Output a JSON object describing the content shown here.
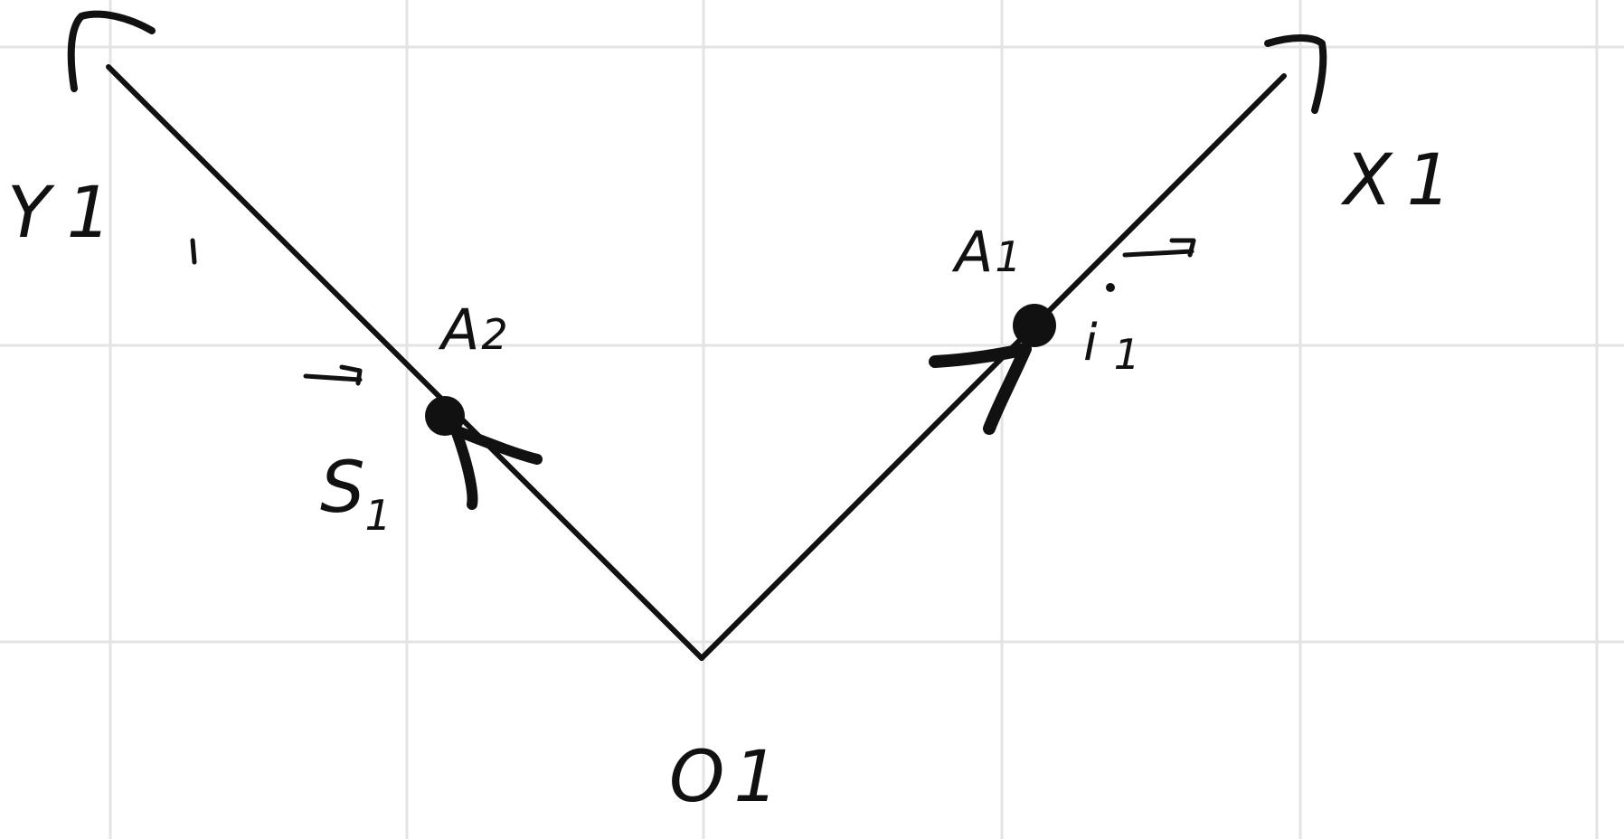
{
  "diagram": {
    "labels": {
      "origin": "O",
      "origin_sub": "1",
      "y_axis": "Y",
      "y_axis_sub": "1",
      "x_axis": "X",
      "x_axis_sub": "1",
      "point_a1": "A",
      "point_a1_sub": "1",
      "point_a2": "A",
      "point_a2_sub": "2",
      "vector_s": "S",
      "vector_s_sub": "1",
      "vector_i": "i",
      "vector_i_sub": "1"
    },
    "colors": {
      "ink": "#111111",
      "grid": "#e3e3e3",
      "background": "#ffffff"
    }
  }
}
